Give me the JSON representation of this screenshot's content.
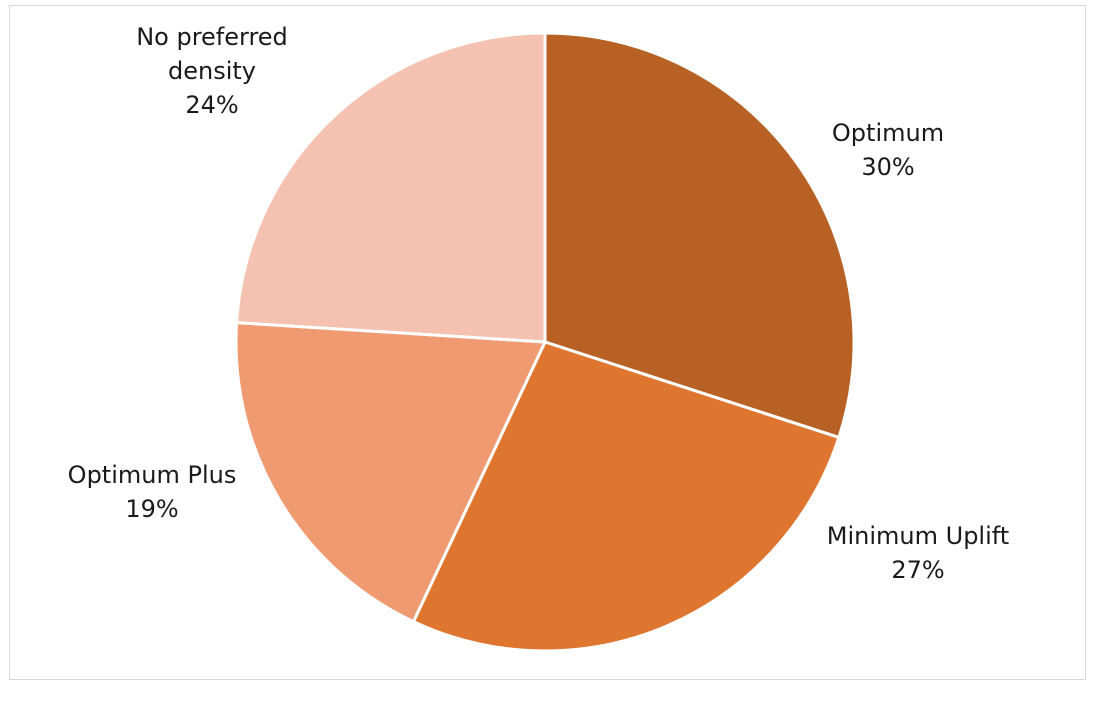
{
  "chart_data": {
    "type": "pie",
    "title": "",
    "slices": [
      {
        "label_lines": [
          "Optimum"
        ],
        "percent_label": "30%",
        "value": 30,
        "color": "#b86125"
      },
      {
        "label_lines": [
          "Minimum Uplift"
        ],
        "percent_label": "27%",
        "value": 27,
        "color": "#df762f"
      },
      {
        "label_lines": [
          "Optimum Plus"
        ],
        "percent_label": "19%",
        "value": 19,
        "color": "#ef9a70"
      },
      {
        "label_lines": [
          "No preferred",
          "density"
        ],
        "percent_label": "24%",
        "value": 24,
        "color": "#f5c2b1"
      }
    ],
    "start_angle_deg": 0,
    "direction": "clockwise",
    "legend": "none"
  }
}
